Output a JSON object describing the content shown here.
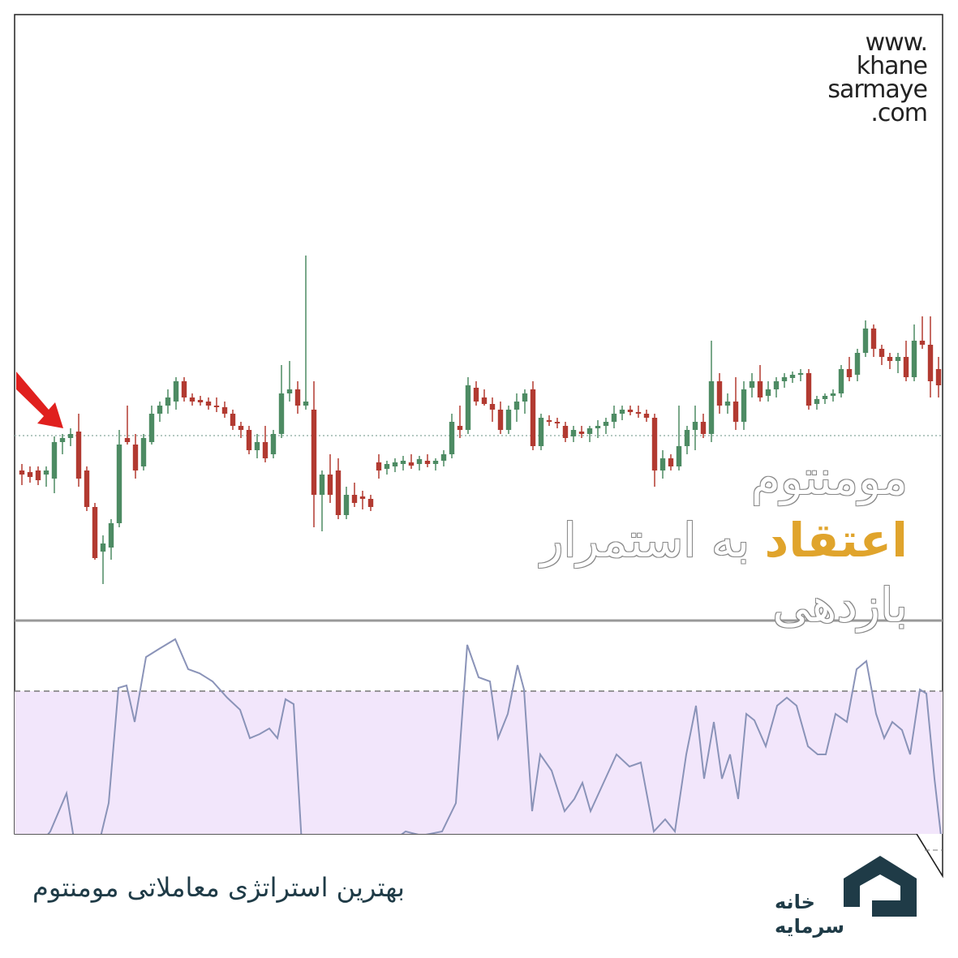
{
  "chart_data": [
    {
      "type": "candlestick",
      "up_color": "#4d8b63",
      "down_color": "#b23a31",
      "xlim": [
        -0.5,
        113.5
      ],
      "ylim": [
        0,
        747
      ],
      "level": 228,
      "open": [
        185,
        183,
        185,
        180,
        175,
        220,
        225,
        233,
        185,
        140,
        85,
        90,
        120,
        225,
        217,
        190,
        220,
        255,
        265,
        270,
        295,
        275,
        272,
        270,
        265,
        263,
        255,
        240,
        235,
        210,
        220,
        205,
        230,
        280,
        285,
        265,
        260,
        155,
        180,
        185,
        130,
        155,
        153,
        150,
        195,
        187,
        190,
        193,
        195,
        193,
        197,
        193,
        197,
        205,
        240,
        235,
        287,
        275,
        267,
        260,
        235,
        260,
        270,
        285,
        215,
        247,
        245,
        240,
        227,
        233,
        230,
        237,
        240,
        245,
        255,
        260,
        257,
        255,
        250,
        185,
        200,
        190,
        215,
        235,
        245,
        230,
        295,
        265,
        270,
        245,
        287,
        295,
        277,
        285,
        295,
        299,
        303,
        305,
        267,
        273,
        277,
        280,
        310,
        303,
        330,
        360,
        335,
        325,
        320,
        325,
        300,
        345,
        340,
        310
      ],
      "high": [
        193,
        190,
        190,
        190,
        227,
        230,
        237,
        255,
        190,
        145,
        105,
        125,
        235,
        265,
        230,
        230,
        265,
        270,
        285,
        300,
        300,
        280,
        277,
        275,
        275,
        270,
        260,
        245,
        240,
        230,
        240,
        235,
        315,
        320,
        295,
        450,
        295,
        185,
        205,
        200,
        165,
        170,
        160,
        155,
        205,
        197,
        200,
        203,
        205,
        203,
        205,
        200,
        210,
        255,
        265,
        300,
        295,
        285,
        275,
        270,
        265,
        280,
        285,
        295,
        255,
        253,
        250,
        245,
        240,
        240,
        240,
        247,
        250,
        265,
        265,
        265,
        265,
        260,
        255,
        210,
        205,
        265,
        240,
        265,
        255,
        345,
        305,
        280,
        300,
        295,
        305,
        315,
        295,
        300,
        305,
        307,
        310,
        310,
        277,
        280,
        285,
        315,
        325,
        335,
        370,
        365,
        340,
        330,
        330,
        345,
        365,
        375,
        375,
        325
      ],
      "low": [
        167,
        170,
        167,
        165,
        157,
        205,
        215,
        165,
        135,
        75,
        45,
        75,
        115,
        217,
        175,
        185,
        217,
        245,
        255,
        260,
        270,
        265,
        265,
        260,
        257,
        250,
        235,
        225,
        205,
        200,
        195,
        200,
        225,
        270,
        255,
        260,
        115,
        110,
        145,
        125,
        125,
        140,
        137,
        135,
        175,
        180,
        183,
        185,
        187,
        185,
        189,
        185,
        190,
        200,
        225,
        230,
        265,
        265,
        245,
        230,
        230,
        245,
        255,
        210,
        210,
        240,
        237,
        220,
        220,
        225,
        220,
        225,
        230,
        237,
        247,
        253,
        250,
        245,
        165,
        175,
        185,
        185,
        205,
        210,
        225,
        220,
        255,
        255,
        235,
        235,
        275,
        270,
        270,
        275,
        287,
        293,
        295,
        260,
        260,
        267,
        270,
        275,
        295,
        295,
        325,
        325,
        315,
        310,
        305,
        295,
        295,
        335,
        275,
        275
      ],
      "close": [
        180,
        177,
        173,
        185,
        220,
        225,
        230,
        175,
        140,
        77,
        95,
        120,
        217,
        220,
        185,
        225,
        255,
        265,
        275,
        295,
        275,
        270,
        269,
        265,
        263,
        255,
        240,
        235,
        210,
        220,
        200,
        230,
        280,
        285,
        265,
        270,
        155,
        180,
        155,
        130,
        155,
        145,
        150,
        140,
        185,
        193,
        195,
        197,
        191,
        199,
        193,
        197,
        205,
        245,
        235,
        290,
        270,
        267,
        260,
        235,
        260,
        270,
        280,
        215,
        250,
        245,
        243,
        225,
        235,
        230,
        237,
        240,
        245,
        255,
        260,
        257,
        255,
        250,
        185,
        200,
        190,
        215,
        235,
        245,
        230,
        295,
        265,
        270,
        245,
        285,
        295,
        275,
        285,
        295,
        300,
        303,
        305,
        265,
        273,
        277,
        280,
        310,
        300,
        330,
        360,
        335,
        325,
        320,
        325,
        300,
        345,
        340,
        295,
        290
      ]
    },
    {
      "type": "line",
      "color": "#8a93b8",
      "fill": "#f2e6fb",
      "xlim": [
        -0.5,
        113.5
      ],
      "ylim": [
        0,
        263
      ],
      "level": 176,
      "x": [
        2.3,
        3.5,
        5.5,
        6.5,
        9.5,
        10.7,
        11.9,
        12.9,
        13.9,
        15.3,
        16.9,
        18.9,
        20.5,
        21.9,
        23.5,
        25.3,
        26.9,
        28.1,
        29.3,
        30.5,
        31.5,
        32.5,
        33.5,
        34.5,
        45.3,
        47.3,
        49.3,
        51.8,
        53.5,
        54.9,
        56.3,
        57.7,
        58.7,
        59.9,
        61.1,
        61.9,
        62.9,
        63.9,
        65.3,
        66.9,
        68.1,
        69.1,
        70.1,
        71.7,
        73.3,
        74.9,
        76.3,
        77.9,
        79.3,
        80.5,
        81.9,
        83.1,
        84.1,
        85.3,
        86.3,
        87.3,
        88.3,
        89.3,
        90.3,
        91.7,
        93.1,
        94.3,
        95.5,
        96.9,
        98.1,
        99.1,
        100.3,
        101.7,
        102.9,
        104.1,
        105.3,
        106.3,
        107.3,
        108.5,
        109.5,
        110.7,
        111.5,
        112.5,
        113.3
      ],
      "values": [
        -12,
        3,
        50,
        -12,
        -12,
        38,
        180,
        183,
        138,
        218,
        228,
        240,
        203,
        198,
        188,
        168,
        153,
        118,
        123,
        130,
        118,
        166,
        160,
        -12,
        -12,
        3,
        -2,
        3,
        38,
        233,
        193,
        188,
        118,
        148,
        208,
        178,
        28,
        98,
        78,
        28,
        43,
        63,
        28,
        63,
        98,
        83,
        88,
        3,
        18,
        3,
        98,
        158,
        68,
        138,
        68,
        98,
        43,
        148,
        140,
        108,
        158,
        168,
        158,
        108,
        98,
        98,
        148,
        138,
        203,
        213,
        148,
        118,
        138,
        128,
        98,
        178,
        173,
        68,
        -2
      ]
    }
  ],
  "watermark": [
    "www.",
    "khane",
    "sarmaye",
    ".com"
  ],
  "overlay": {
    "line1": "مومنتوم",
    "highlight": "اعتقاد",
    "line2": "به استمرار",
    "line3": "بازدهی"
  },
  "caption": "بهترین استراتژی معاملاتی مومنتوم",
  "logo": [
    "خانه",
    "سرمایه"
  ]
}
